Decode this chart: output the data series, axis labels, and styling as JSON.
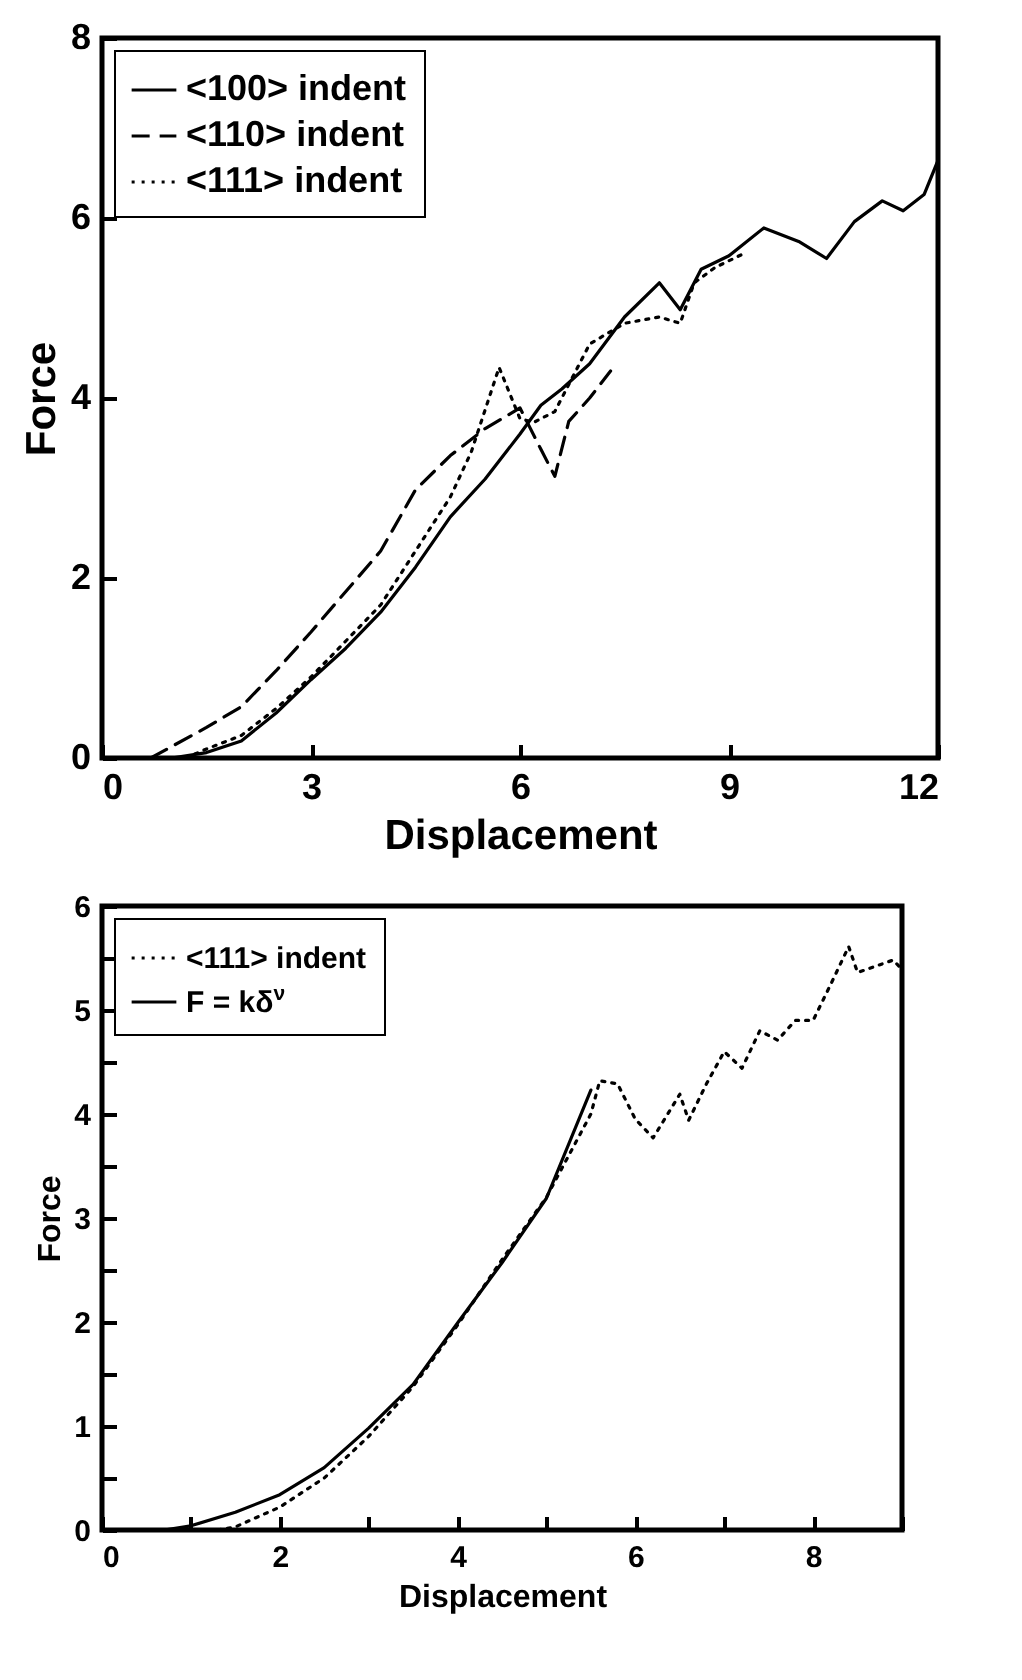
{
  "chart_data": [
    {
      "type": "line",
      "xlabel": "Displacement",
      "ylabel": "Force",
      "xlim": [
        0,
        12
      ],
      "ylim": [
        0,
        8
      ],
      "xticks": [
        0,
        3,
        6,
        9,
        12
      ],
      "yticks": [
        0,
        2,
        4,
        6,
        8
      ],
      "legend": "top left",
      "grid": false,
      "series": [
        {
          "name": "<100> indent",
          "color": "#000000",
          "line_style": "solid",
          "x": [
            1,
            1.5,
            2,
            2.5,
            3,
            3.5,
            4,
            4.5,
            5,
            5.5,
            6,
            6.3,
            6.6,
            7,
            7.5,
            8,
            8.3,
            8.6,
            9,
            9.5,
            10,
            10.4,
            10.8,
            11.2,
            11.5,
            11.8,
            12
          ],
          "values": [
            0,
            0.06,
            0.19,
            0.5,
            0.87,
            1.22,
            1.62,
            2.12,
            2.68,
            3.1,
            3.6,
            3.92,
            4.1,
            4.38,
            4.9,
            5.28,
            4.98,
            5.43,
            5.58,
            5.89,
            5.74,
            5.55,
            5.96,
            6.19,
            6.08,
            6.26,
            6.64
          ]
        },
        {
          "name": "<110> indent",
          "color": "#000000",
          "line_style": "dashed",
          "x": [
            0.7,
            1.5,
            2,
            2.5,
            3,
            3.5,
            4,
            4.5,
            5,
            5.5,
            6,
            6.3,
            6.5,
            6.7,
            7,
            7.3
          ],
          "values": [
            0,
            0.34,
            0.57,
            0.97,
            1.4,
            1.85,
            2.3,
            2.98,
            3.36,
            3.66,
            3.89,
            3.43,
            3.13,
            3.74,
            4.0,
            4.3
          ]
        },
        {
          "name": "<111> indent",
          "color": "#000000",
          "line_style": "dotted",
          "x": [
            1.2,
            1.5,
            2,
            2.5,
            3,
            3.5,
            4,
            4.5,
            5,
            5.3,
            5.7,
            6,
            6.2,
            6.5,
            7,
            7.5,
            8,
            8.3,
            8.5,
            8.8,
            9.2
          ],
          "values": [
            0,
            0.1,
            0.25,
            0.55,
            0.9,
            1.3,
            1.7,
            2.3,
            2.9,
            3.4,
            4.34,
            3.77,
            3.73,
            3.85,
            4.6,
            4.83,
            4.9,
            4.83,
            5.28,
            5.45,
            5.6
          ]
        }
      ]
    },
    {
      "type": "line",
      "xlabel": "Displacement",
      "ylabel": "Force",
      "xlim": [
        0,
        9
      ],
      "ylim": [
        0,
        6
      ],
      "xticks": [
        0,
        {
          "value": 1,
          "label": null
        },
        2,
        {
          "value": 3,
          "label": null
        },
        4,
        {
          "value": 5,
          "label": null
        },
        6,
        {
          "value": 7,
          "label": null
        },
        8,
        {
          "value": 9,
          "label": null
        }
      ],
      "yticks": [
        0,
        {
          "value": 0.5,
          "label": null
        },
        1,
        {
          "value": 1.5,
          "label": null
        },
        2,
        {
          "value": 2.5,
          "label": null
        },
        3,
        {
          "value": 3.5,
          "label": null
        },
        4,
        {
          "value": 4.5,
          "label": null
        },
        5,
        {
          "value": 5.5,
          "label": null
        },
        6
      ],
      "legend": "top left",
      "grid": false,
      "series": [
        {
          "name": "<111> indent",
          "color": "#000000",
          "line_style": "dotted",
          "x": [
            1.3,
            1.5,
            2,
            2.5,
            3,
            3.5,
            4,
            4.5,
            5,
            5.5,
            5.6,
            5.8,
            6,
            6.2,
            6.4,
            6.5,
            6.6,
            6.8,
            7,
            7.2,
            7.4,
            7.6,
            7.8,
            8,
            8.2,
            8.4,
            8.5,
            8.7,
            8.9,
            9
          ],
          "values": [
            0,
            0.03,
            0.22,
            0.5,
            0.9,
            1.38,
            1.97,
            2.6,
            3.2,
            4.0,
            4.32,
            4.29,
            3.95,
            3.77,
            4.05,
            4.19,
            3.94,
            4.29,
            4.6,
            4.44,
            4.8,
            4.71,
            4.9,
            4.9,
            5.25,
            5.61,
            5.36,
            5.42,
            5.48,
            5.39
          ]
        },
        {
          "name": "F = kδ$^{ν}$",
          "color": "#000000",
          "line_style": "solid",
          "x": [
            0.7,
            1,
            1.5,
            2,
            2.5,
            3,
            3.5,
            4,
            4.5,
            5,
            5.5
          ],
          "values": [
            0,
            0.04,
            0.17,
            0.34,
            0.6,
            0.98,
            1.4,
            1.99,
            2.57,
            3.19,
            4.23
          ]
        }
      ]
    }
  ]
}
